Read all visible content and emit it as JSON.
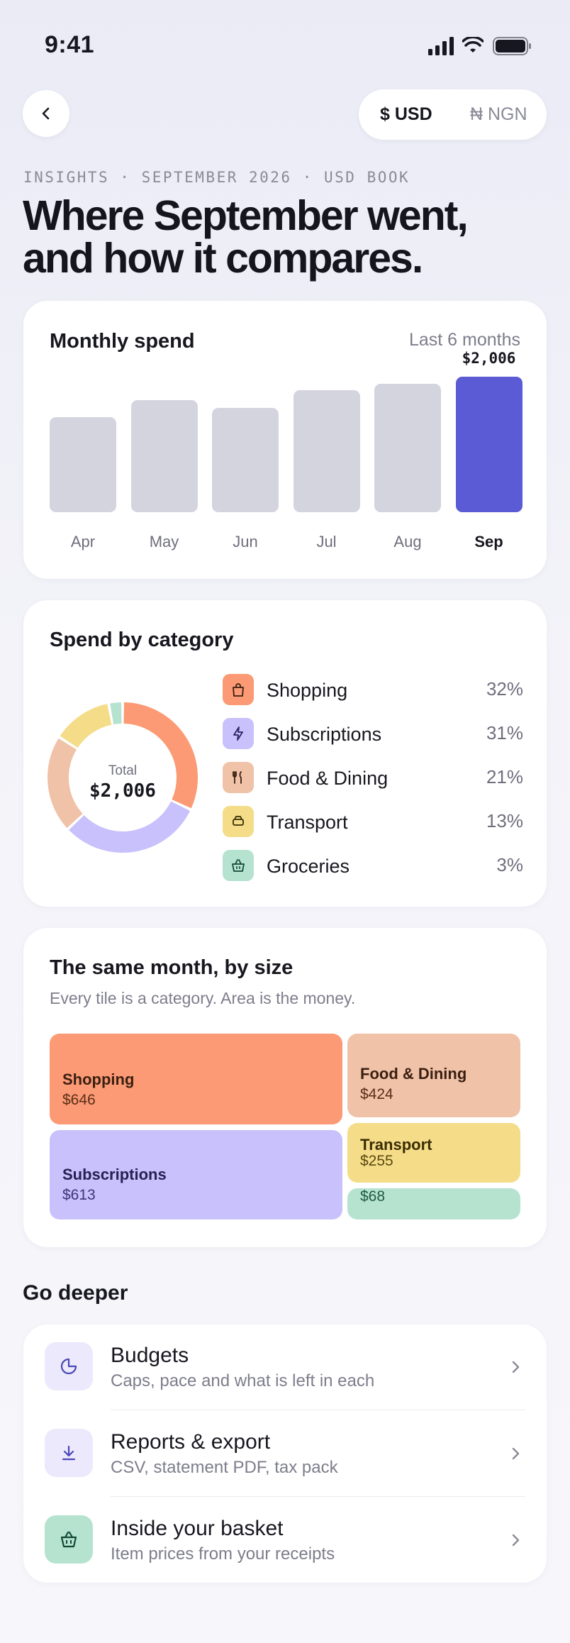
{
  "status": {
    "time": "9:41"
  },
  "header": {
    "back_icon": "chevron-left-icon",
    "currency": {
      "usd": "$ USD",
      "ngn": "₦ NGN",
      "selected": "usd"
    }
  },
  "eyebrow": "INSIGHTS · SEPTEMBER 2026 · USD BOOK",
  "headline": {
    "line1": "Where September went,",
    "line2": "and how it compares."
  },
  "monthly": {
    "title": "Monthly spend",
    "range": "Last 6 months",
    "highlight_value": "$2,006",
    "chart_data": {
      "type": "bar",
      "categories": [
        "Apr",
        "May",
        "Jun",
        "Jul",
        "Aug",
        "Sep"
      ],
      "values": [
        1400,
        1660,
        1540,
        1800,
        1900,
        2006
      ],
      "highlight": "Sep",
      "colors": {
        "default": "#d4d4df",
        "highlight": "#5b5bd6"
      }
    }
  },
  "category": {
    "title": "Spend by category",
    "total_label": "Total",
    "total_value": "$2,006",
    "chart_data": {
      "type": "pie",
      "categories": [
        "Shopping",
        "Subscriptions",
        "Food & Dining",
        "Transport",
        "Groceries"
      ],
      "values": [
        32,
        31,
        21,
        13,
        3
      ],
      "colors": [
        "#fb9a74",
        "#c8c1fb",
        "#f0c2a8",
        "#f4dc88",
        "#b6e3d0"
      ]
    },
    "items": [
      {
        "name": "Shopping",
        "pct": "32%",
        "icon": "shopping-bag-icon",
        "bg": "#fb9a74"
      },
      {
        "name": "Subscriptions",
        "pct": "31%",
        "icon": "bolt-icon",
        "bg": "#c8c1fb"
      },
      {
        "name": "Food & Dining",
        "pct": "21%",
        "icon": "fork-knife-icon",
        "bg": "#f0c2a8"
      },
      {
        "name": "Transport",
        "pct": "13%",
        "icon": "car-icon",
        "bg": "#f4dc88"
      },
      {
        "name": "Groceries",
        "pct": "3%",
        "icon": "basket-icon",
        "bg": "#b6e3d0"
      }
    ]
  },
  "treemap": {
    "title": "The same month, by size",
    "subtitle": "Every tile is a category. Area is the money.",
    "tiles": [
      {
        "name": "Shopping",
        "value": "$646"
      },
      {
        "name": "Subscriptions",
        "value": "$613"
      },
      {
        "name": "Food & Dining",
        "value": "$424"
      },
      {
        "name": "Transport",
        "value": "$255"
      },
      {
        "name": "",
        "value": "$68"
      }
    ]
  },
  "deeper": {
    "title": "Go deeper",
    "items": [
      {
        "title": "Budgets",
        "subtitle": "Caps, pace and what is left in each",
        "icon": "pie-slice-icon"
      },
      {
        "title": "Reports & export",
        "subtitle": "CSV, statement PDF, tax pack",
        "icon": "download-icon"
      },
      {
        "title": "Inside your basket",
        "subtitle": "Item prices from your receipts",
        "icon": "basket-icon"
      }
    ]
  }
}
